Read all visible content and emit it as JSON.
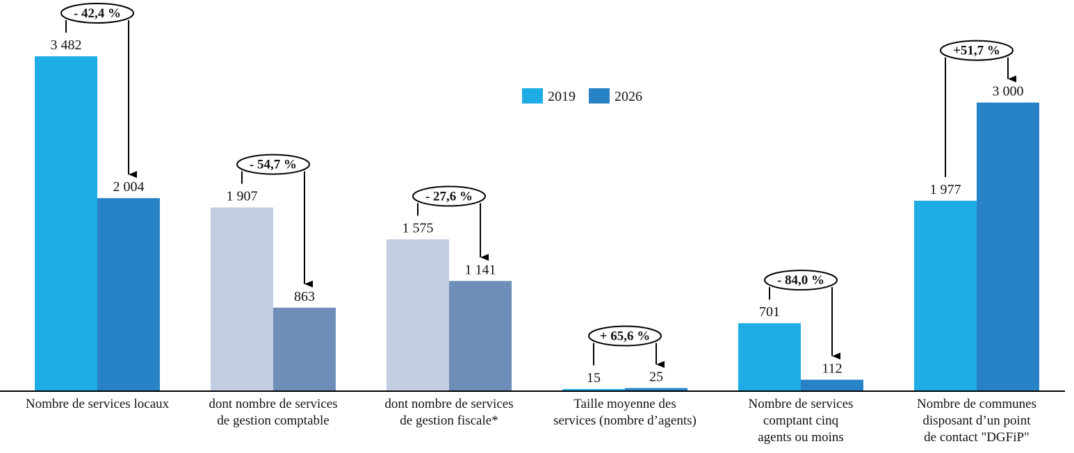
{
  "chart_data": {
    "type": "bar",
    "title": "",
    "xlabel": "",
    "ylabel": "",
    "legend": {
      "placement": "top-center",
      "entries": [
        "2019",
        "2026"
      ]
    },
    "grid": false,
    "categories": [
      [
        "Nombre de services locaux"
      ],
      [
        "dont nombre de services",
        "de gestion comptable"
      ],
      [
        "dont nombre de services",
        "de gestion fiscale*"
      ],
      [
        "Taille moyenne des",
        "services (nombre d’agents)"
      ],
      [
        "Nombre de services",
        "comptant cinq",
        "agents ou moins"
      ],
      [
        "Nombre de communes",
        "disposant d’un point",
        "de contact \"DGFiP\""
      ]
    ],
    "series": [
      {
        "name": "2019",
        "values": [
          3482,
          1907,
          1575,
          15,
          701,
          1977
        ],
        "labels": [
          "3 482",
          "1 907",
          "1 575",
          "15",
          "701",
          "1 977"
        ]
      },
      {
        "name": "2026",
        "values": [
          2004,
          863,
          1141,
          25,
          112,
          3000
        ],
        "labels": [
          "2 004",
          "863",
          "1 141",
          "25",
          "112",
          "3 000"
        ]
      }
    ],
    "changes": [
      "- 42,4 %",
      "- 54,7 %",
      "- 27,6 %",
      "+ 65,6 %",
      "- 84,0 %",
      "+51,7 %"
    ],
    "colors": {
      "2019": "#1EACE4",
      "2026": "#2783C6",
      "sub_2019": "#C3CEE1",
      "sub_2026": "#6E8DB9"
    },
    "group_palette": [
      "main",
      "sub",
      "sub",
      "main",
      "main",
      "main"
    ]
  }
}
